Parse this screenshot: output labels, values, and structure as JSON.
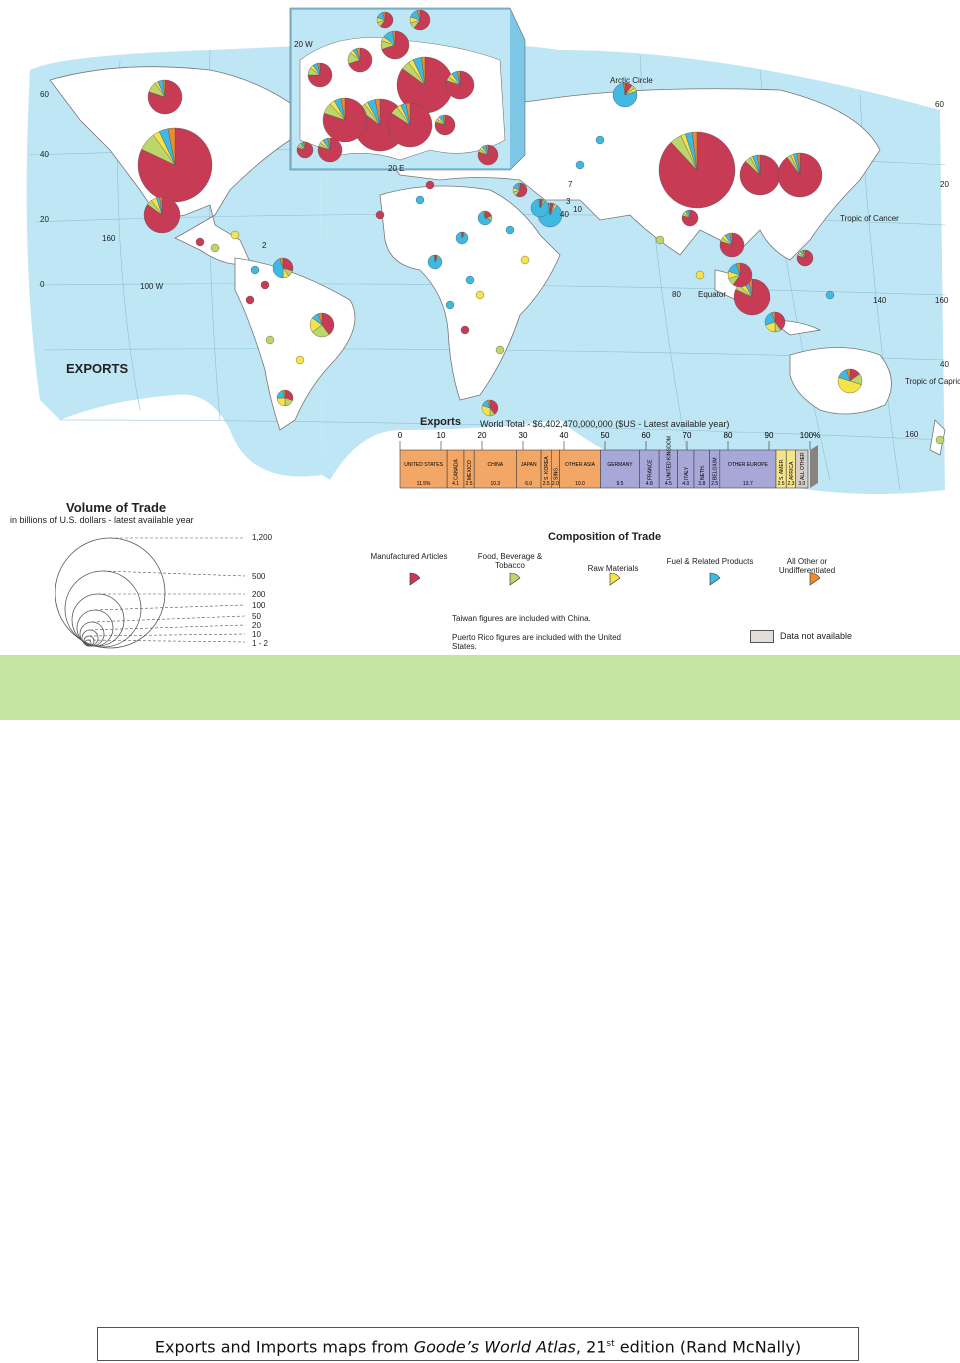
{
  "map": {
    "heading": "EXPORTS",
    "lat_labels": [
      "60",
      "40",
      "20",
      "0",
      "20",
      "40",
      "60"
    ],
    "lon_labels": [
      "20 W",
      "20 E",
      "100 W",
      "160",
      "140",
      "160",
      "80",
      "40",
      "160"
    ],
    "region_labels": {
      "arctic_circle": "Arctic Circle",
      "tropic_of_cancer": "Tropic of Cancer",
      "equator": "Equator",
      "tropic_of_capricorn": "Tropic of Capricorn",
      "marker_2": "2",
      "marker_3": "3",
      "marker_10": "10",
      "marker_7": "7"
    }
  },
  "volume_legend": {
    "title": "Volume of Trade",
    "subtitle": "in billions of U.S. dollars - latest available year",
    "levels": [
      "1,200",
      "500",
      "200",
      "100",
      "50",
      "20",
      "10",
      "1 - 2"
    ]
  },
  "composition_legend": {
    "title": "Composition of Trade",
    "items": [
      {
        "label": "Manufactured Articles",
        "color": "#c83b55"
      },
      {
        "label": "Food, Beverage & Tobacco",
        "color": "#bcd66a"
      },
      {
        "label": "Raw Materials",
        "color": "#f4e44a"
      },
      {
        "label": "Fuel & Related Products",
        "color": "#3fb8e2"
      },
      {
        "label": "All Other or Undifferentiated",
        "color": "#ef8a2a"
      }
    ],
    "note1": "Taiwan figures are included with China.",
    "note2": "Puerto Rico figures are included with the United States.",
    "not_available": "Data not available"
  },
  "exports_bar": {
    "title": "Exports",
    "total": "World Total - $6,402,470,000,000 ($US - Latest available year)",
    "axis_ticks": [
      "0",
      "10",
      "20",
      "30",
      "40",
      "50",
      "60",
      "70",
      "80",
      "90",
      "100%"
    ],
    "segments": [
      {
        "label": "UNITED STATES",
        "value": 11.5,
        "value_label": "11.5%",
        "color": "#f2a766"
      },
      {
        "label": "CANADA",
        "value": 4.1,
        "value_label": "4.1",
        "color": "#f2a766"
      },
      {
        "label": "MEXICO",
        "value": 2.5,
        "value_label": "2.5",
        "color": "#f2a766"
      },
      {
        "label": "CHINA",
        "value": 10.3,
        "value_label": "10.3",
        "color": "#f2a766"
      },
      {
        "label": "JAPAN",
        "value": 6.0,
        "value_label": "6.0",
        "color": "#f2a766"
      },
      {
        "label": "S. KOREA",
        "value": 2.5,
        "value_label": "2.5",
        "color": "#f2a766"
      },
      {
        "label": "SING.",
        "value": 2.0,
        "value_label": "2.0",
        "color": "#f2a766"
      },
      {
        "label": "OTHER ASIA",
        "value": 10.0,
        "value_label": "10.0",
        "color": "#f2a766"
      },
      {
        "label": "GERMANY",
        "value": 9.5,
        "value_label": "9.5",
        "color": "#a7a8d8"
      },
      {
        "label": "FRANCE",
        "value": 4.8,
        "value_label": "4.8",
        "color": "#a7a8d8"
      },
      {
        "label": "UNITED KINGDOM",
        "value": 4.5,
        "value_label": "4.5",
        "color": "#a7a8d8"
      },
      {
        "label": "ITALY",
        "value": 4.0,
        "value_label": "4.0",
        "color": "#a7a8d8"
      },
      {
        "label": "NETH.",
        "value": 3.8,
        "value_label": "3.8",
        "color": "#a7a8d8"
      },
      {
        "label": "BELGIUM",
        "value": 2.5,
        "value_label": "2.5",
        "color": "#a7a8d8"
      },
      {
        "label": "OTHER EUROPE",
        "value": 13.7,
        "value_label": "13.7",
        "color": "#a7a8d8"
      },
      {
        "label": "S. AMER.",
        "value": 2.5,
        "value_label": "2.5",
        "color": "#f5e48a"
      },
      {
        "label": "AFRICA",
        "value": 2.3,
        "value_label": "2.3",
        "color": "#f5e48a"
      },
      {
        "label": "ALL OTHER",
        "value": 3.0,
        "value_label": "3.0",
        "color": "#d6cfc8"
      }
    ]
  },
  "caption": {
    "prefix": "Exports and Imports maps from ",
    "title": "Goode’s World Atlas",
    "mid": ", 21",
    "sup": "st",
    "suffix": " edition (Rand McNally)"
  }
}
